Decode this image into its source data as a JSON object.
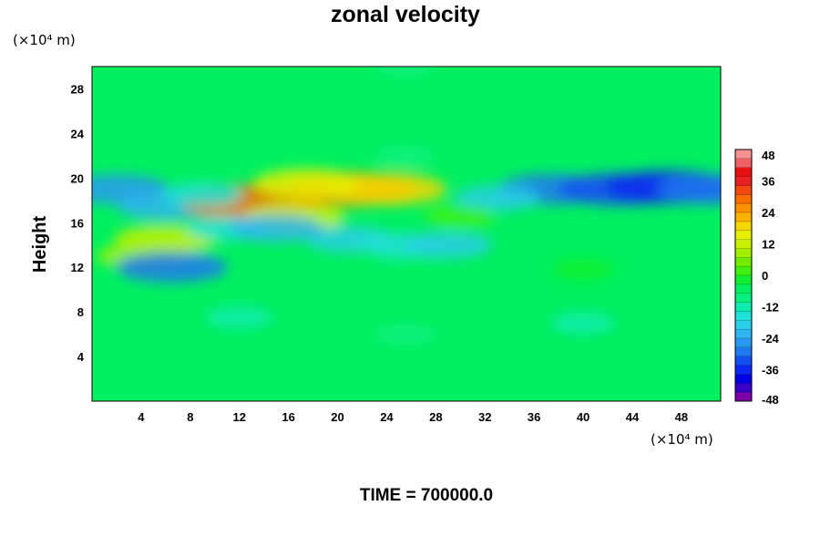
{
  "chart_data": {
    "type": "heatmap",
    "title": "zonal velocity",
    "xlabel": "",
    "ylabel": "Height",
    "x_unit_label": "(×10⁴ m)",
    "y_unit_label": "(×10⁴ m)",
    "xlim": [
      0,
      51.2
    ],
    "ylim": [
      0,
      30
    ],
    "x_ticks": [
      "4",
      "8",
      "12",
      "16",
      "20",
      "24",
      "28",
      "32",
      "36",
      "40",
      "44",
      "48"
    ],
    "y_ticks": [
      "4",
      "8",
      "12",
      "16",
      "20",
      "24",
      "28"
    ],
    "colorbar": {
      "range": [
        -48,
        48
      ],
      "step": 4,
      "ticks": [
        "48",
        "36",
        "24",
        "12",
        "0",
        "-12",
        "-24",
        "-36",
        "-48"
      ],
      "colors": [
        "#7d00a8",
        "#3a00c8",
        "#0000e6",
        "#0a28f0",
        "#1450f0",
        "#1e78f0",
        "#2898f0",
        "#30b4f0",
        "#2acde8",
        "#20e0d8",
        "#10ecb0",
        "#08f080",
        "#00f060",
        "#10f030",
        "#40f010",
        "#70f000",
        "#a0f000",
        "#c8f000",
        "#e6f000",
        "#f5d800",
        "#f8b400",
        "#f89000",
        "#f86c00",
        "#f04a10",
        "#e82020",
        "#e61010",
        "#f06060",
        "#f49090"
      ]
    },
    "features": [
      {
        "x": 25.5,
        "y": 30.0,
        "u": -2
      },
      {
        "x": 25.5,
        "y": 22.0,
        "u": -3
      },
      {
        "x": 25.5,
        "y": 6.0,
        "u": -4
      },
      {
        "x": 12.0,
        "y": 7.5,
        "u": -6
      },
      {
        "x": 40.0,
        "y": 7.0,
        "u": -5
      },
      {
        "x": 25.5,
        "y": 11.8,
        "u": 3
      },
      {
        "x": 40.0,
        "y": 11.8,
        "u": 4
      },
      {
        "x": 2.0,
        "y": 19.0,
        "u": -24
      },
      {
        "x": 6.0,
        "y": 17.5,
        "u": -20
      },
      {
        "x": 13.0,
        "y": 17.8,
        "u": 40
      },
      {
        "x": 16.5,
        "y": 16.5,
        "u": 22
      },
      {
        "x": 21.0,
        "y": 19.0,
        "u": 36
      },
      {
        "x": 24.0,
        "y": 19.0,
        "u": 30
      },
      {
        "x": 17.5,
        "y": 19.5,
        "u": 24
      },
      {
        "x": 6.0,
        "y": 14.5,
        "u": 22
      },
      {
        "x": 4.0,
        "y": 13.0,
        "u": 16
      },
      {
        "x": 11.0,
        "y": 15.5,
        "u": -12
      },
      {
        "x": 21.0,
        "y": 14.5,
        "u": -16
      },
      {
        "x": 25.0,
        "y": 14.0,
        "u": -12
      },
      {
        "x": 15.0,
        "y": 15.5,
        "u": -18
      },
      {
        "x": 6.5,
        "y": 12.0,
        "u": -26
      },
      {
        "x": 29.0,
        "y": 14.0,
        "u": -16
      },
      {
        "x": 37.5,
        "y": 19.0,
        "u": -26
      },
      {
        "x": 43.0,
        "y": 19.0,
        "u": -32
      },
      {
        "x": 47.0,
        "y": 19.2,
        "u": -34
      },
      {
        "x": 50.5,
        "y": 19.0,
        "u": -26
      },
      {
        "x": 33.0,
        "y": 18.2,
        "u": -14
      },
      {
        "x": 9.0,
        "y": 18.5,
        "u": -12
      },
      {
        "x": 30.0,
        "y": 16.5,
        "u": 8
      }
    ]
  },
  "footer": {
    "time_label": "TIME = 700000.0"
  }
}
